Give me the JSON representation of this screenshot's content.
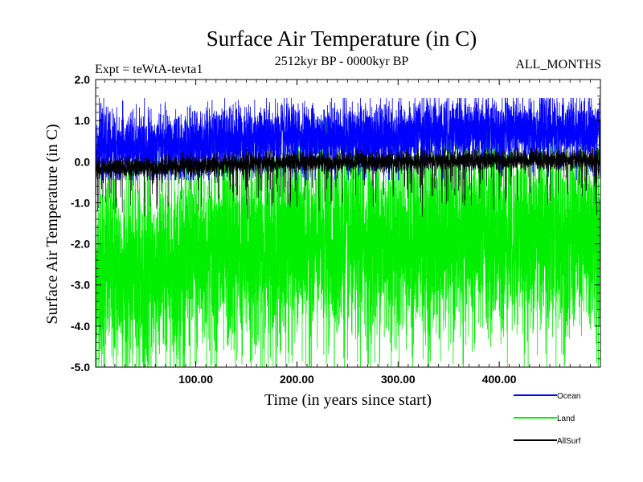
{
  "chart_data": {
    "type": "line",
    "title": "Surface Air Temperature (in C)",
    "subtitle_left": "Expt = teWtA-tevta1",
    "subtitle_center": "2512kyr BP - 0000kyr BP",
    "subtitle_right": "ALL_MONTHS",
    "xlabel": "Time (in years since start)",
    "ylabel": "Surface Air Temperature (in C)",
    "xlim": [
      1,
      500
    ],
    "ylim": [
      -5.0,
      2.0
    ],
    "x_ticks": [
      100,
      200,
      300,
      400
    ],
    "x_tick_labels": [
      "100.00",
      "200.00",
      "300.00",
      "400.00"
    ],
    "y_ticks": [
      2.0,
      1.0,
      0.0,
      -1.0,
      -2.0,
      -3.0,
      -4.0,
      -5.0
    ],
    "y_tick_labels": [
      "2.0",
      "1.0",
      "0.0",
      "-1.0",
      "-2.0",
      "-3.0",
      "-4.0",
      "-5.0"
    ],
    "zero_line": 0.0,
    "n_points": 6000,
    "series": [
      {
        "name": "Ocean",
        "color": "#0000ff",
        "segments": [
          [
            0,
            0.4
          ],
          [
            100,
            0.35
          ],
          [
            110,
            0.55
          ],
          [
            250,
            0.6
          ],
          [
            300,
            0.55
          ],
          [
            330,
            0.75
          ],
          [
            500,
            0.75
          ]
        ],
        "mean_approx": 0.6,
        "range_approx": [
          -0.45,
          1.55
        ]
      },
      {
        "name": "Land",
        "color": "#00ee00",
        "segments": [
          [
            0,
            -2.6
          ],
          [
            50,
            -2.8
          ],
          [
            100,
            -2.4
          ],
          [
            200,
            -2.0
          ],
          [
            300,
            -2.0
          ],
          [
            400,
            -1.8
          ],
          [
            500,
            -1.9
          ]
        ],
        "mean_approx": -2.0,
        "range_approx": [
          -5.0,
          1.0
        ]
      },
      {
        "name": "AllSurf",
        "color": "#000000",
        "segments": [
          [
            0,
            -0.15
          ],
          [
            100,
            -0.1
          ],
          [
            200,
            0.0
          ],
          [
            300,
            0.0
          ],
          [
            400,
            0.05
          ],
          [
            500,
            0.05
          ]
        ],
        "mean_approx": 0.0,
        "range_approx": [
          -1.4,
          0.35
        ]
      }
    ]
  }
}
